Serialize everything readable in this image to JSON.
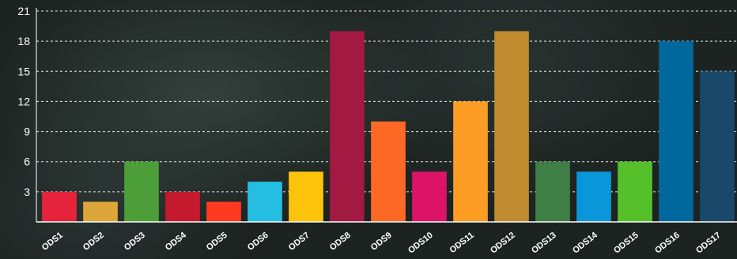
{
  "chart_data": {
    "type": "bar",
    "title": "",
    "xlabel": "",
    "ylabel": "",
    "categories": [
      "ODS1",
      "ODS2",
      "ODS3",
      "ODS4",
      "ODS5",
      "ODS6",
      "ODS7",
      "ODS8",
      "ODS9",
      "ODS10",
      "ODS11",
      "ODS12",
      "ODS13",
      "ODS14",
      "ODS15",
      "ODS16",
      "ODS17"
    ],
    "values": [
      3,
      2,
      6,
      3,
      2,
      4,
      5,
      19,
      10,
      5,
      12,
      19,
      6,
      5,
      6,
      18,
      15
    ],
    "colors": [
      "#e5243b",
      "#dda63a",
      "#4c9f38",
      "#c5192d",
      "#ff3a21",
      "#26bde2",
      "#fcc30b",
      "#a21942",
      "#fd6925",
      "#dd1367",
      "#fd9d24",
      "#bf8b2e",
      "#3f7e44",
      "#0a97d9",
      "#56c02b",
      "#00689d",
      "#19486a"
    ],
    "yticks": [
      3,
      6,
      9,
      12,
      15,
      18,
      21
    ],
    "ylim": [
      0,
      21
    ],
    "grid": true,
    "grid_style": "dashed",
    "legend": "none",
    "text_color": "#ffffff"
  }
}
